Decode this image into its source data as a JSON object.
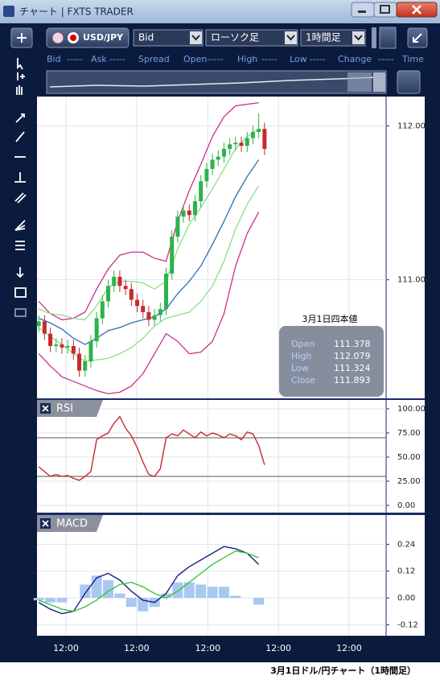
{
  "window": {
    "title": "チャート | FXTS TRADER"
  },
  "toolbar": {
    "symbol": "USD/JPY",
    "price_type": "Bid",
    "chart_kind": "ローソク足",
    "timeframe": "1時間足"
  },
  "info_labels": [
    "Bid",
    "-----",
    "Ask",
    "-----",
    "Spread",
    "Open",
    "-----",
    "High",
    "-----",
    "Low",
    "-----",
    "Change",
    "-----",
    "Time"
  ],
  "tooltip": {
    "title": "3月1日四本値",
    "rows": [
      {
        "label": "Open",
        "value": "111.378"
      },
      {
        "label": "High",
        "value": "112.079"
      },
      {
        "label": "Low",
        "value": "111.324"
      },
      {
        "label": "Close",
        "value": "111.893"
      }
    ]
  },
  "caption": "3月1日ドル/円チャート（1時間足）",
  "chart_data": [
    {
      "type": "candlestick",
      "xlim": [
        -0.3,
        60
      ],
      "ylim": [
        110.23,
        112.19
      ],
      "yticks": [
        {
          "value": 112,
          "label": "112.000"
        },
        {
          "value": 111,
          "label": "111.000"
        }
      ],
      "up_color": "#2db34a",
      "down_color": "#c8282d",
      "x": [
        0,
        1,
        2,
        3,
        4,
        5,
        6,
        7,
        8,
        9,
        10,
        11,
        12,
        13,
        14,
        15,
        16,
        17,
        18,
        19,
        20,
        21,
        22,
        23,
        24,
        25,
        26,
        27,
        28,
        29,
        30,
        31,
        32,
        33,
        34,
        35,
        36,
        37,
        38,
        39
      ],
      "open": [
        110.7,
        110.73,
        110.65,
        110.57,
        110.58,
        110.56,
        110.57,
        110.52,
        110.41,
        110.47,
        110.6,
        110.75,
        110.86,
        110.96,
        111.02,
        110.96,
        110.94,
        110.87,
        110.83,
        110.79,
        110.74,
        110.77,
        110.81,
        111.04,
        111.28,
        111.41,
        111.45,
        111.42,
        111.51,
        111.64,
        111.72,
        111.78,
        111.8,
        111.85,
        111.88,
        111.89,
        111.87,
        111.92,
        111.96,
        111.98
      ],
      "high": [
        110.77,
        110.77,
        110.69,
        110.62,
        110.62,
        110.61,
        110.61,
        110.56,
        110.51,
        110.64,
        110.79,
        110.9,
        111.0,
        111.06,
        111.06,
        111.0,
        110.98,
        110.91,
        110.87,
        110.83,
        110.81,
        110.85,
        111.08,
        111.32,
        111.45,
        111.49,
        111.49,
        111.55,
        111.68,
        111.76,
        111.82,
        111.84,
        111.89,
        111.92,
        111.93,
        111.93,
        111.96,
        112.0,
        112.08,
        112.02
      ],
      "low": [
        110.66,
        110.61,
        110.53,
        110.53,
        110.52,
        110.52,
        110.48,
        110.37,
        110.37,
        110.43,
        110.56,
        110.71,
        110.82,
        110.92,
        110.92,
        110.9,
        110.83,
        110.79,
        110.75,
        110.7,
        110.7,
        110.73,
        110.77,
        111.0,
        111.24,
        111.37,
        111.38,
        111.38,
        111.47,
        111.6,
        111.68,
        111.74,
        111.76,
        111.81,
        111.84,
        111.83,
        111.83,
        111.88,
        111.92,
        111.81
      ],
      "close": [
        110.73,
        110.65,
        110.57,
        110.58,
        110.56,
        110.57,
        110.52,
        110.41,
        110.47,
        110.6,
        110.75,
        110.86,
        110.96,
        111.02,
        110.96,
        110.94,
        110.87,
        110.83,
        110.79,
        110.74,
        110.77,
        110.81,
        111.04,
        111.28,
        111.41,
        111.45,
        111.42,
        111.51,
        111.64,
        111.72,
        111.78,
        111.8,
        111.85,
        111.88,
        111.89,
        111.87,
        111.92,
        111.96,
        111.98,
        111.85
      ],
      "overlay_x": [
        0,
        2,
        4,
        6,
        8,
        10,
        12,
        14,
        16,
        18,
        20,
        22,
        24,
        26,
        28,
        30,
        32,
        34,
        36,
        38
      ],
      "overlays": [
        {
          "color": "#cc2f8c",
          "values": [
            110.86,
            110.78,
            110.74,
            110.75,
            110.79,
            110.94,
            111.07,
            111.16,
            111.18,
            111.18,
            111.14,
            111.12,
            111.38,
            111.58,
            111.75,
            111.93,
            112.06,
            112.13,
            112.14,
            112.15
          ]
        },
        {
          "color": "#86e086",
          "values": [
            110.81,
            110.78,
            110.77,
            110.75,
            110.74,
            110.83,
            110.95,
            110.99,
            110.99,
            110.98,
            110.94,
            110.99,
            111.2,
            111.36,
            111.47,
            111.59,
            111.72,
            111.85,
            111.93,
            111.98
          ]
        },
        {
          "color": "#2a6fb5",
          "values": [
            110.75,
            110.72,
            110.68,
            110.62,
            110.58,
            110.62,
            110.67,
            110.69,
            110.72,
            110.74,
            110.76,
            110.81,
            110.91,
            110.99,
            111.09,
            111.23,
            111.38,
            111.54,
            111.67,
            111.78
          ]
        },
        {
          "color": "#86e086",
          "values": [
            110.69,
            110.63,
            110.58,
            110.52,
            110.47,
            110.48,
            110.49,
            110.52,
            110.56,
            110.62,
            110.7,
            110.75,
            110.77,
            110.79,
            110.86,
            110.96,
            111.12,
            111.33,
            111.49,
            111.61
          ]
        },
        {
          "color": "#cc2f8c",
          "values": [
            110.52,
            110.44,
            110.37,
            110.34,
            110.31,
            110.28,
            110.26,
            110.27,
            110.31,
            110.39,
            110.52,
            110.65,
            110.6,
            110.52,
            110.53,
            110.6,
            110.78,
            111.09,
            111.3,
            111.44
          ]
        }
      ]
    },
    {
      "type": "line",
      "title": "RSI",
      "xlim": [
        -0.3,
        60
      ],
      "ylim": [
        -7.5,
        109.2
      ],
      "yticks": [
        {
          "value": 100,
          "label": "100.00"
        },
        {
          "value": 75,
          "label": "75.00"
        },
        {
          "value": 50,
          "label": "50.00"
        },
        {
          "value": 25,
          "label": "25.00"
        },
        {
          "value": 0,
          "label": "0.00"
        }
      ],
      "levels": [
        70,
        30
      ],
      "x": [
        0,
        1,
        2,
        3,
        4,
        5,
        6,
        7,
        8,
        9,
        10,
        11,
        12,
        13,
        14,
        15,
        16,
        17,
        18,
        19,
        20,
        21,
        22,
        23,
        24,
        25,
        26,
        27,
        28,
        29,
        30,
        31,
        32,
        33,
        34,
        35,
        36,
        37,
        38,
        39
      ],
      "series": [
        {
          "color": "#c8282d",
          "values": [
            40,
            35,
            30,
            32,
            30,
            31,
            28,
            26,
            30,
            35,
            68,
            72,
            75,
            85,
            92,
            80,
            72,
            60,
            45,
            32,
            30,
            38,
            70,
            74,
            72,
            78,
            74,
            70,
            76,
            72,
            75,
            73,
            70,
            74,
            72,
            68,
            76,
            74,
            62,
            42
          ]
        }
      ]
    },
    {
      "type": "line",
      "title": "MACD",
      "xlim": [
        -0.3,
        60
      ],
      "ylim": [
        -0.169,
        0.371
      ],
      "yticks": [
        0.24,
        0.12,
        {
          "value": 0,
          "label": "0.00"
        },
        -0.12
      ],
      "xticks": [
        {
          "value": 4.7,
          "label": "12:00"
        },
        {
          "value": 16.9,
          "label": "12:00"
        },
        {
          "value": 29.2,
          "label": "12:00"
        },
        {
          "value": 41.4,
          "label": "12:00"
        },
        {
          "value": 53.6,
          "label": "12:00"
        }
      ],
      "x": [
        0,
        2,
        4,
        6,
        8,
        10,
        12,
        14,
        16,
        18,
        20,
        22,
        24,
        26,
        28,
        30,
        32,
        34,
        36,
        38
      ],
      "series": [
        {
          "type": "bar",
          "color": "#a8c8f0",
          "values": [
            -0.01,
            -0.02,
            -0.02,
            0.0,
            0.06,
            0.1,
            0.08,
            0.02,
            -0.04,
            -0.06,
            -0.04,
            0.02,
            0.07,
            0.07,
            0.06,
            0.05,
            0.05,
            0.01,
            0.0,
            -0.03
          ]
        },
        {
          "color": "#1a237e",
          "values": [
            -0.02,
            -0.05,
            -0.07,
            -0.06,
            0.02,
            0.09,
            0.11,
            0.08,
            0.03,
            -0.01,
            -0.02,
            0.02,
            0.1,
            0.14,
            0.17,
            0.2,
            0.23,
            0.22,
            0.2,
            0.15
          ]
        },
        {
          "color": "#3cc43c",
          "values": [
            -0.01,
            -0.03,
            -0.05,
            -0.06,
            -0.04,
            -0.01,
            0.03,
            0.06,
            0.07,
            0.05,
            0.02,
            0.0,
            0.03,
            0.07,
            0.11,
            0.15,
            0.18,
            0.21,
            0.2,
            0.18
          ]
        }
      ]
    }
  ]
}
